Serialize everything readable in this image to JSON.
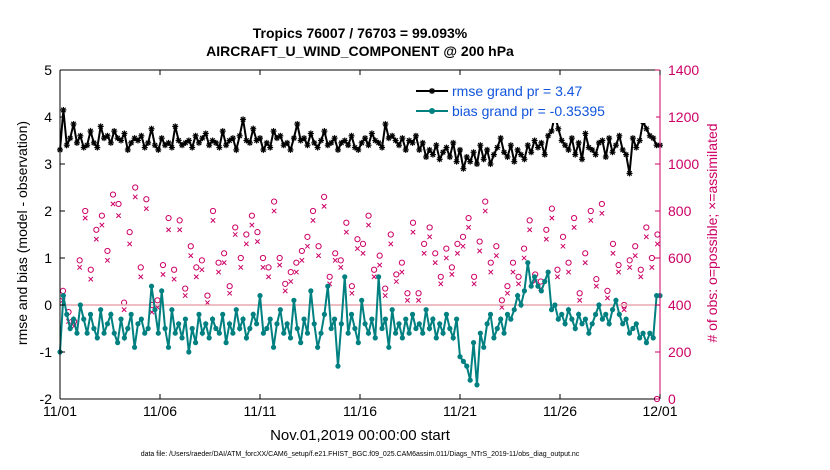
{
  "chart_data": {
    "type": "line",
    "title": "Tropics 76007 / 76703 = 99.093%",
    "subtitle": "AIRCRAFT_U_WIND_COMPONENT @ 200 hPa",
    "xlabel": "Nov.01,2019 00:00:00 start",
    "ylabel": "rmse and bias (model - observation)",
    "ylabel_right": "# of obs: o=possible; ×=assimilated",
    "footnote": "data file: /Users/raeder/DAI/ATM_forcXX/CAM6_setup/f.e21.FHIST_BGC.f09_025.CAM6assim.011/Diags_NTrS_2019-11/obs_diag_output.nc",
    "xlim": [
      0,
      30
    ],
    "ylim": [
      -2,
      5
    ],
    "ylim_right": [
      0,
      1400
    ],
    "x_ticks": [
      0,
      5,
      10,
      15,
      20,
      25,
      30
    ],
    "x_tick_labels": [
      "11/01",
      "11/06",
      "11/11",
      "11/16",
      "11/21",
      "11/26",
      "12/01"
    ],
    "y_ticks": [
      -2,
      -1,
      0,
      1,
      2,
      3,
      4,
      5
    ],
    "y_tick_labels": [
      "-2",
      "-1",
      "0",
      "1",
      "2",
      "3",
      "4",
      "5"
    ],
    "y_right_ticks": [
      0,
      200,
      400,
      600,
      800,
      1000,
      1200,
      1400
    ],
    "y_right_tick_labels": [
      "0",
      "200",
      "400",
      "600",
      "800",
      "1000",
      "1200",
      "1400"
    ],
    "legend_position": "top-right",
    "series": [
      {
        "name": "rmse grand pr = 3.47",
        "color": "#000000",
        "marker": "asterisk",
        "values": [
          3.3,
          4.15,
          3.4,
          3.55,
          3.85,
          3.45,
          3.6,
          3.35,
          3.4,
          3.7,
          3.45,
          3.35,
          3.8,
          3.55,
          3.6,
          3.45,
          3.7,
          3.55,
          3.5,
          3.65,
          3.3,
          3.45,
          3.55,
          3.5,
          3.6,
          3.35,
          3.45,
          3.75,
          3.4,
          3.3,
          3.55,
          3.4,
          3.45,
          3.35,
          3.8,
          3.5,
          3.4,
          3.45,
          3.5,
          3.35,
          3.6,
          3.45,
          3.55,
          3.65,
          3.4,
          3.5,
          3.45,
          3.35,
          3.7,
          3.4,
          3.5,
          3.55,
          3.3,
          3.6,
          3.95,
          3.5,
          3.45,
          3.75,
          3.5,
          3.55,
          3.3,
          3.45,
          3.35,
          3.7,
          3.55,
          3.6,
          3.4,
          3.45,
          3.3,
          3.55,
          3.85,
          3.5,
          3.55,
          3.4,
          3.65,
          3.45,
          3.35,
          3.5,
          3.7,
          3.4,
          3.45,
          3.55,
          3.3,
          3.45,
          3.5,
          3.4,
          3.6,
          3.35,
          3.3,
          3.45,
          3.55,
          3.4,
          3.65,
          3.5,
          3.45,
          3.35,
          3.85,
          3.55,
          3.6,
          3.5,
          3.4,
          3.55,
          3.3,
          3.5,
          3.45,
          3.6,
          3.3,
          3.45,
          3.15,
          3.3,
          3.2,
          3.4,
          3.1,
          3.25,
          3.35,
          3.15,
          3.45,
          3.05,
          3.3,
          2.9,
          3.15,
          3.05,
          3.25,
          3.0,
          3.4,
          3.1,
          3.3,
          3.0,
          3.2,
          3.35,
          3.55,
          3.25,
          3.15,
          3.4,
          3.05,
          3.3,
          3.2,
          3.1,
          3.4,
          3.25,
          3.5,
          3.35,
          3.45,
          3.2,
          3.6,
          3.7,
          4.05,
          3.75,
          3.5,
          3.4,
          3.3,
          3.55,
          3.2,
          3.45,
          3.1,
          3.65,
          3.35,
          3.3,
          3.2,
          3.45,
          3.5,
          3.15,
          3.55,
          3.25,
          3.4,
          3.6,
          3.3,
          3.2,
          2.8,
          3.55,
          3.35,
          3.5,
          3.9,
          3.75,
          3.6,
          3.55,
          3.4,
          3.4
        ]
      },
      {
        "name": "bias grand pr = -0.35395",
        "color": "#008080",
        "marker": "circle",
        "values": [
          -1.0,
          0.2,
          -0.2,
          -0.5,
          -0.3,
          -0.6,
          0.0,
          -0.3,
          -0.6,
          -0.2,
          -0.5,
          -0.7,
          -0.1,
          -0.6,
          -0.4,
          -0.2,
          -0.6,
          -0.8,
          -0.3,
          -0.7,
          -0.5,
          -0.2,
          -0.9,
          -0.4,
          -0.3,
          -0.6,
          -0.5,
          0.4,
          -0.1,
          -0.6,
          0.3,
          -0.5,
          -0.9,
          -0.1,
          -0.6,
          -0.4,
          -0.7,
          -0.3,
          -1.0,
          -0.5,
          -0.8,
          -0.2,
          -0.6,
          -0.4,
          -0.7,
          -0.3,
          -0.5,
          -0.6,
          -0.2,
          -0.8,
          -0.4,
          -0.6,
          -0.1,
          -0.5,
          -0.3,
          -0.7,
          -0.5,
          -0.2,
          -0.4,
          0.2,
          -0.6,
          -0.5,
          -0.3,
          -0.9,
          -0.4,
          -0.1,
          -0.6,
          -0.4,
          -0.7,
          0.1,
          -0.5,
          -0.8,
          -0.3,
          -0.6,
          0.3,
          -0.4,
          -0.9,
          -0.6,
          -0.2,
          0.4,
          -0.5,
          -0.3,
          -1.3,
          -0.4,
          0.6,
          -0.6,
          -0.2,
          -0.5,
          -0.8,
          0.1,
          -0.4,
          -0.6,
          -0.3,
          -0.7,
          0.6,
          -0.5,
          -0.3,
          -0.9,
          -0.1,
          -0.6,
          -0.4,
          -0.7,
          -0.3,
          -0.6,
          -0.2,
          -0.5,
          -0.4,
          -0.6,
          -0.1,
          -0.5,
          -0.3,
          -0.7,
          -0.4,
          -0.6,
          -0.2,
          -0.5,
          -0.7,
          -0.3,
          -1.1,
          -1.2,
          -1.3,
          -1.6,
          -0.8,
          -1.7,
          -0.6,
          -0.9,
          -0.4,
          -0.2,
          -0.7,
          -0.5,
          -0.3,
          -0.6,
          -0.2,
          -0.3,
          -0.1,
          0.2,
          0.0,
          0.3,
          0.9,
          0.4,
          0.6,
          0.4,
          0.3,
          0.5,
          0.7,
          -0.1,
          0.0,
          -0.3,
          -0.2,
          -0.4,
          -0.1,
          -0.3,
          -0.5,
          -0.2,
          -0.4,
          -0.3,
          -0.6,
          -0.4,
          -0.2,
          0.0,
          -0.3,
          -0.2,
          -0.4,
          -0.1,
          0.1,
          -0.2,
          -0.4,
          -0.3,
          -0.6,
          -0.5,
          -0.4,
          -0.7,
          -0.6,
          -0.8,
          -0.6,
          -0.7,
          0.2,
          0.2
        ]
      }
    ],
    "obs_possible": [
      460,
      370,
      330,
      590,
      800,
      550,
      720,
      780,
      630,
      870,
      830,
      410,
      710,
      900,
      560,
      850,
      400,
      420,
      570,
      770,
      550,
      760,
      470,
      650,
      560,
      590,
      440,
      800,
      580,
      620,
      480,
      730,
      600,
      700,
      780,
      710,
      600,
      560,
      840,
      600,
      490,
      540,
      580,
      630,
      690,
      800,
      650,
      860,
      520,
      620,
      590,
      750,
      480,
      680,
      660,
      780,
      550,
      610,
      470,
      700,
      530,
      580,
      450,
      750,
      450,
      660,
      730,
      620,
      520,
      640,
      560,
      660,
      690,
      770,
      520,
      670,
      840,
      580,
      650,
      420,
      480,
      580,
      520,
      640,
      760,
      530,
      500,
      720,
      810,
      550,
      690,
      580,
      770,
      450,
      620,
      800,
      510,
      830,
      460,
      660,
      570,
      400,
      590,
      650,
      550,
      730,
      600,
      700
    ],
    "obs_assimilated": [
      420,
      330,
      310,
      560,
      770,
      510,
      680,
      740,
      590,
      830,
      780,
      380,
      660,
      860,
      520,
      810,
      370,
      390,
      530,
      720,
      510,
      720,
      440,
      610,
      520,
      550,
      410,
      760,
      540,
      580,
      450,
      700,
      560,
      660,
      740,
      670,
      560,
      520,
      800,
      570,
      460,
      500,
      540,
      590,
      650,
      760,
      610,
      820,
      490,
      590,
      560,
      710,
      450,
      640,
      620,
      740,
      520,
      570,
      440,
      660,
      500,
      540,
      420,
      710,
      420,
      620,
      690,
      580,
      490,
      600,
      530,
      620,
      650,
      730,
      490,
      630,
      800,
      540,
      610,
      390,
      450,
      540,
      490,
      600,
      720,
      500,
      470,
      680,
      770,
      520,
      650,
      540,
      730,
      420,
      580,
      760,
      480,
      790,
      430,
      620,
      540,
      380,
      560,
      610,
      520,
      690,
      560,
      660
    ]
  }
}
